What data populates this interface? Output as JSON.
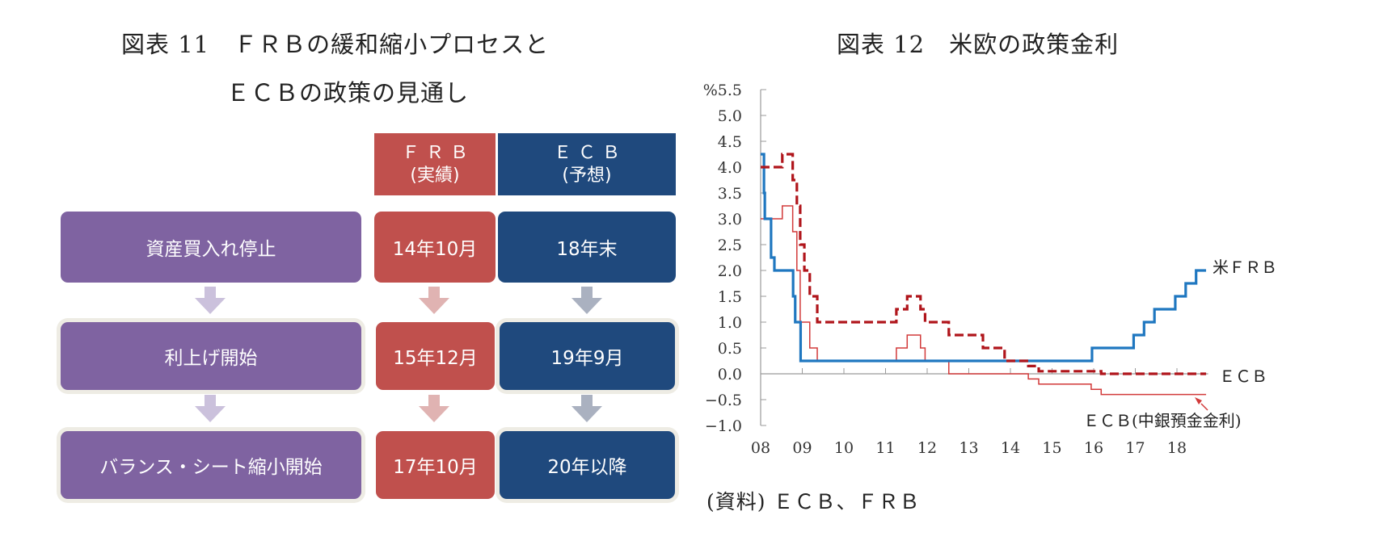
{
  "figure11": {
    "title_line1": "図表 11　ＦＲＢの緩和縮小プロセスと",
    "title_line2": "ＥＣＢの政策の見通し",
    "columns": [
      {
        "line1": "ＦＲＢ",
        "line2": "(実績)",
        "color": "#c0504d"
      },
      {
        "line1": "ＥＣＢ",
        "line2": "(予想)",
        "color": "#1f497d"
      }
    ],
    "rows": [
      {
        "step": "資産買入れ停止",
        "frb": "14年10月",
        "ecb": "18年末"
      },
      {
        "step": "利上げ開始",
        "frb": "15年12月",
        "ecb": "19年9月"
      },
      {
        "step": "バランス・シート縮小開始",
        "frb": "17年10月",
        "ecb": "20年以降"
      }
    ],
    "colors": {
      "step": "#7f63a1",
      "frb": "#c0504d",
      "ecb": "#1f497d",
      "arrow_step": "#cbc1dc",
      "arrow_frb": "#e0b3b2",
      "arrow_ecb": "#aab1c0"
    }
  },
  "figure12": {
    "title": "図表 12　米欧の政策金利",
    "source": "(資料)  ＥＣＢ、ＦＲＢ"
  },
  "chart_data": {
    "type": "line",
    "title": "図表 12　米欧の政策金利",
    "xlabel": "",
    "ylabel": "%",
    "ylim": [
      -1.0,
      5.5
    ],
    "yticks": [
      "%5.5",
      "5.0",
      "4.5",
      "4.0",
      "3.5",
      "3.0",
      "2.5",
      "2.0",
      "1.5",
      "1.0",
      "0.5",
      "0.0",
      "−0.5",
      "−1.0"
    ],
    "ytick_values": [
      5.5,
      5.0,
      4.5,
      4.0,
      3.5,
      3.0,
      2.5,
      2.0,
      1.5,
      1.0,
      0.5,
      0.0,
      -0.5,
      -1.0
    ],
    "xticks": [
      "08",
      "09",
      "10",
      "11",
      "12",
      "13",
      "14",
      "15",
      "16",
      "17",
      "18"
    ],
    "xtick_values": [
      2008,
      2009,
      2010,
      2011,
      2012,
      2013,
      2014,
      2015,
      2016,
      2017,
      2018
    ],
    "grid": false,
    "legend_position": "inline-right",
    "series": [
      {
        "name": "米ＦＲＢ",
        "style": "solid-thick",
        "color": "#1f77c0",
        "step_points": [
          [
            2008.0,
            4.25
          ],
          [
            2008.08,
            3.5
          ],
          [
            2008.1,
            3.0
          ],
          [
            2008.25,
            2.25
          ],
          [
            2008.33,
            2.0
          ],
          [
            2008.78,
            1.5
          ],
          [
            2008.83,
            1.0
          ],
          [
            2008.96,
            0.25
          ],
          [
            2015.96,
            0.5
          ],
          [
            2016.96,
            0.75
          ],
          [
            2017.21,
            1.0
          ],
          [
            2017.46,
            1.25
          ],
          [
            2017.96,
            1.5
          ],
          [
            2018.21,
            1.75
          ],
          [
            2018.46,
            2.0
          ],
          [
            2018.7,
            2.0
          ]
        ]
      },
      {
        "name": "ＥＣＢ",
        "style": "dashed-thick",
        "color": "#b0151b",
        "step_points": [
          [
            2008.0,
            4.0
          ],
          [
            2008.52,
            4.25
          ],
          [
            2008.77,
            3.75
          ],
          [
            2008.87,
            3.25
          ],
          [
            2008.95,
            2.5
          ],
          [
            2009.05,
            2.0
          ],
          [
            2009.18,
            1.5
          ],
          [
            2009.36,
            1.0
          ],
          [
            2011.26,
            1.25
          ],
          [
            2011.52,
            1.5
          ],
          [
            2011.84,
            1.25
          ],
          [
            2011.95,
            1.0
          ],
          [
            2012.52,
            0.75
          ],
          [
            2013.34,
            0.5
          ],
          [
            2013.86,
            0.25
          ],
          [
            2014.43,
            0.15
          ],
          [
            2014.68,
            0.05
          ],
          [
            2016.18,
            0.0
          ],
          [
            2018.7,
            0.0
          ]
        ]
      },
      {
        "name": "ＥＣＢ(中銀預金金利)",
        "style": "solid-thin",
        "color": "#d23a3a",
        "step_points": [
          [
            2008.0,
            3.0
          ],
          [
            2008.52,
            3.25
          ],
          [
            2008.77,
            2.75
          ],
          [
            2008.87,
            2.0
          ],
          [
            2008.95,
            1.0
          ],
          [
            2009.18,
            0.5
          ],
          [
            2009.36,
            0.25
          ],
          [
            2011.26,
            0.5
          ],
          [
            2011.52,
            0.75
          ],
          [
            2011.84,
            0.5
          ],
          [
            2011.95,
            0.25
          ],
          [
            2012.52,
            0.0
          ],
          [
            2014.43,
            -0.1
          ],
          [
            2014.68,
            -0.2
          ],
          [
            2015.94,
            -0.3
          ],
          [
            2016.18,
            -0.4
          ],
          [
            2018.7,
            -0.4
          ]
        ]
      }
    ],
    "annotations": [
      {
        "text": "米ＦＲＢ",
        "series": "米ＦＲＢ"
      },
      {
        "text": "ＥＣＢ",
        "series": "ＥＣＢ"
      },
      {
        "text": "ＥＣＢ(中銀預金金利)",
        "series": "ＥＣＢ(中銀預金金利)",
        "arrow": true
      }
    ]
  }
}
